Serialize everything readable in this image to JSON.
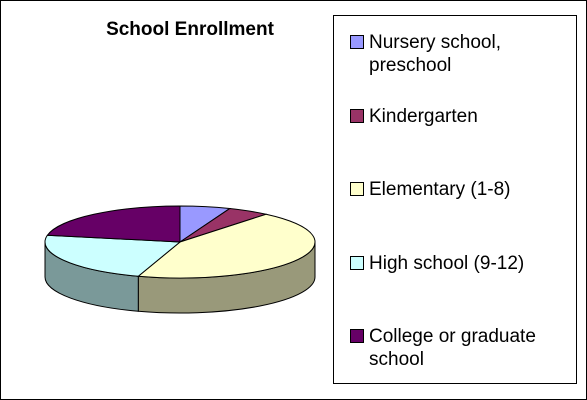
{
  "chart_data": {
    "type": "pie3d",
    "title": "School Enrollment",
    "categories": [
      "Nursery school, preschool",
      "Kindergarten",
      "Elementary (1-8)",
      "High school (9-12)",
      "College or graduate school"
    ],
    "values": [
      6,
      5,
      44,
      23,
      22
    ],
    "colors": [
      "#9999ff",
      "#993366",
      "#ffffcc",
      "#ccffff",
      "#660066"
    ],
    "legend": "right"
  }
}
